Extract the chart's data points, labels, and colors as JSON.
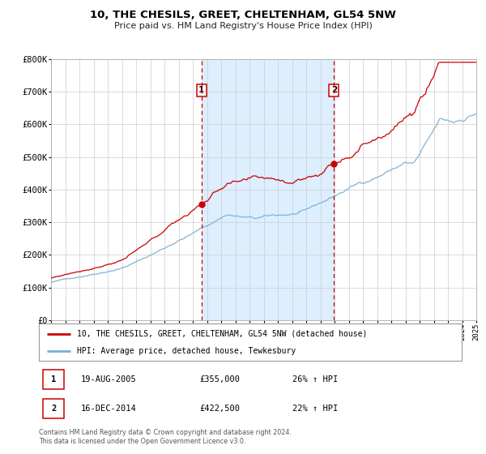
{
  "title": "10, THE CHESILS, GREET, CHELTENHAM, GL54 5NW",
  "subtitle": "Price paid vs. HM Land Registry's House Price Index (HPI)",
  "x_start_year": 1995,
  "x_end_year": 2025,
  "y_min": 0,
  "y_max": 800000,
  "y_ticks": [
    0,
    100000,
    200000,
    300000,
    400000,
    500000,
    600000,
    700000,
    800000
  ],
  "y_tick_labels": [
    "£0",
    "£100K",
    "£200K",
    "£300K",
    "£400K",
    "£500K",
    "£600K",
    "£700K",
    "£800K"
  ],
  "sale1_year": 2005.625,
  "sale1_price": 355000,
  "sale1_label": "1",
  "sale1_date": "19-AUG-2005",
  "sale1_hpi_pct": "26%",
  "sale2_year": 2014.958,
  "sale2_price": 422500,
  "sale2_label": "2",
  "sale2_date": "16-DEC-2014",
  "sale2_hpi_pct": "22%",
  "property_line_color": "#cc0000",
  "hpi_line_color": "#7bafd4",
  "shading_color": "#ddeeff",
  "vline_color": "#cc0000",
  "background_color": "#ffffff",
  "grid_color": "#cccccc",
  "legend_label_property": "10, THE CHESILS, GREET, CHELTENHAM, GL54 5NW (detached house)",
  "legend_label_hpi": "HPI: Average price, detached house, Tewkesbury",
  "footer_line1": "Contains HM Land Registry data © Crown copyright and database right 2024.",
  "footer_line2": "This data is licensed under the Open Government Licence v3.0."
}
